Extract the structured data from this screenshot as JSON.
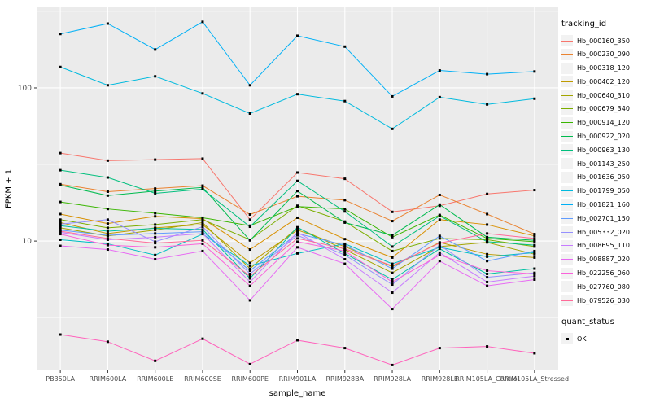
{
  "figure": {
    "panel_bg": "#EBEBEB",
    "grid_color": "#FFFFFF",
    "tick_color": "#333333",
    "tick_label_color": "#4D4D4D",
    "title_color": "#000000",
    "marker_color": "#000000",
    "legend_key_bg": "#F2F2F2"
  },
  "chart_data": {
    "type": "line",
    "title": "",
    "xlabel": "sample_name",
    "ylabel": "FPKM + 1",
    "y_scale": "log10",
    "ylim": [
      1.43,
      340
    ],
    "grid": true,
    "legend_position": "right",
    "y_ticks": [
      {
        "label": "100",
        "value": 100
      },
      {
        "label": "10",
        "value": 10
      }
    ],
    "y_minor_gridlines": [
      316.23,
      31.62,
      3.162
    ],
    "categories": [
      "PB350LA",
      "RRIM600LA",
      "RRIM600LE",
      "RRIM600SE",
      "RRIM600PE",
      "RRIM901LA",
      "RRIM928BA",
      "RRIM928LA",
      "RRIM928LE",
      "RRIM105LA_Control",
      "RRIM105LA_Stressed"
    ],
    "legend_title": "tracking_id",
    "legend2": {
      "title": "quant_status",
      "items": [
        {
          "label": "OK"
        }
      ]
    },
    "series": [
      {
        "name": "Hb_000160_350",
        "color": "#F8766D",
        "values": [
          37.5,
          33.5,
          34,
          34.5,
          13.8,
          28,
          25.5,
          15.5,
          17,
          20.3,
          21.5
        ]
      },
      {
        "name": "Hb_000230_090",
        "color": "#EA8331",
        "values": [
          23.5,
          21,
          22,
          23,
          14.9,
          19.6,
          18.5,
          13.5,
          20,
          15,
          11.1
        ]
      },
      {
        "name": "Hb_000318_120",
        "color": "#D89000",
        "values": [
          15,
          13,
          14.5,
          14,
          8.8,
          14.2,
          10.3,
          7.8,
          13.8,
          12.8,
          10.8
        ]
      },
      {
        "name": "Hb_000402_120",
        "color": "#C09B00",
        "values": [
          13.2,
          11.2,
          12.2,
          12.8,
          7.2,
          11.8,
          9.2,
          6.8,
          9.8,
          8.2,
          7.8
        ]
      },
      {
        "name": "Hb_000640_310",
        "color": "#A3A500",
        "values": [
          12.2,
          10.8,
          11.8,
          13.2,
          6.6,
          12.2,
          8.8,
          6.2,
          9.2,
          9.8,
          8.2
        ]
      },
      {
        "name": "Hb_000679_340",
        "color": "#7CAE00",
        "values": [
          13.8,
          12.2,
          12.8,
          13.8,
          10.2,
          17,
          13.4,
          8.6,
          10.4,
          10.2,
          9.2
        ]
      },
      {
        "name": "Hb_000914_120",
        "color": "#39B600",
        "values": [
          18,
          16.2,
          15.2,
          14.2,
          12.6,
          16.8,
          16.2,
          10.6,
          14.8,
          10.4,
          9.9
        ]
      },
      {
        "name": "Hb_000922_020",
        "color": "#00BB4E",
        "values": [
          23.2,
          19.8,
          21.2,
          22.4,
          10.1,
          21.2,
          13.2,
          10.9,
          17.3,
          10.6,
          10.1
        ]
      },
      {
        "name": "Hb_000963_130",
        "color": "#00BF7D",
        "values": [
          29,
          26,
          20.5,
          21.8,
          12.4,
          24.7,
          15.6,
          9.2,
          14.6,
          9.9,
          9.4
        ]
      },
      {
        "name": "Hb_001143_250",
        "color": "#00C1A3",
        "values": [
          12.6,
          11.6,
          12.1,
          11.9,
          5.7,
          12.3,
          8.3,
          5.6,
          8.9,
          6.1,
          6.6
        ]
      },
      {
        "name": "Hb_001636_050",
        "color": "#00BFC4",
        "values": [
          10.2,
          9.6,
          8.1,
          11.1,
          6.9,
          8.3,
          9.6,
          7.1,
          9.1,
          7.9,
          8.4
        ]
      },
      {
        "name": "Hb_001799_050",
        "color": "#00BADE",
        "values": [
          137,
          104,
          119,
          92,
          68,
          91,
          82,
          54,
          87,
          78,
          85
        ]
      },
      {
        "name": "Hb_001821_160",
        "color": "#00B0F6",
        "values": [
          225,
          263,
          178,
          270,
          104,
          219,
          186,
          88,
          130,
          123,
          128
        ]
      },
      {
        "name": "Hb_002701_150",
        "color": "#619CFF",
        "values": [
          11.8,
          10.9,
          11.2,
          11.5,
          6.4,
          11.2,
          9.4,
          6.6,
          10.8,
          7.4,
          8.6
        ]
      },
      {
        "name": "Hb_005332_020",
        "color": "#9590FF",
        "values": [
          12.9,
          13.8,
          9.9,
          12.4,
          6.1,
          10.9,
          8.1,
          5.2,
          9.4,
          5.8,
          6.2
        ]
      },
      {
        "name": "Hb_008695_110",
        "color": "#C77CFF",
        "values": [
          11.4,
          10.2,
          10.6,
          11.2,
          5.4,
          11.4,
          7.6,
          4.6,
          8.4,
          5.4,
          5.9
        ]
      },
      {
        "name": "Hb_008887_020",
        "color": "#E76BF3",
        "values": [
          9.3,
          8.8,
          7.6,
          8.6,
          4.1,
          9.1,
          7.1,
          3.6,
          7.4,
          5.1,
          5.6
        ]
      },
      {
        "name": "Hb_022256_060",
        "color": "#FA62DB",
        "values": [
          11.1,
          9.4,
          9.1,
          9.6,
          5.1,
          9.9,
          8.6,
          5.4,
          8.1,
          6.4,
          6.1
        ]
      },
      {
        "name": "Hb_027760_080",
        "color": "#FF62BC",
        "values": [
          2.45,
          2.2,
          1.65,
          2.3,
          1.57,
          2.25,
          2.0,
          1.55,
          2.0,
          2.05,
          1.85
        ]
      },
      {
        "name": "Hb_079526_030",
        "color": "#FF6A98",
        "values": [
          11.6,
          10.4,
          9.7,
          10.1,
          5.9,
          10.4,
          8.9,
          6.9,
          9.7,
          11.2,
          10.4
        ]
      }
    ]
  }
}
